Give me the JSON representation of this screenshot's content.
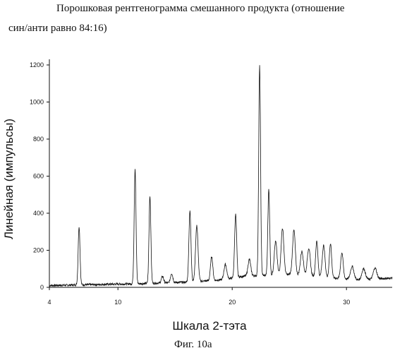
{
  "document": {
    "title_line_1": "Порошковая рентгенограмма смешанного продукта (отношение",
    "title_line_2": "син/анти равно 84:16)",
    "caption": "Фиг. 10а"
  },
  "chart_data": {
    "type": "line",
    "title": "Порошковая рентгенограмма смешанного продукта (отношение син/анти равно 84:16)",
    "xlabel": "Шкала 2-тэта",
    "ylabel": "Линейная (импульсы)",
    "xlim": [
      4,
      34
    ],
    "ylim": [
      0,
      1200
    ],
    "x_ticks": [
      "4",
      "10",
      "20",
      "30"
    ],
    "x_tick_values": [
      4,
      10,
      20,
      30
    ],
    "y_ticks": [
      "0",
      "200",
      "400",
      "600",
      "800",
      "1000",
      "1200"
    ],
    "y_tick_values": [
      0,
      200,
      400,
      600,
      800,
      1000,
      1200
    ],
    "grid": false,
    "baseline": [
      [
        4,
        10
      ],
      [
        8,
        15
      ],
      [
        12,
        20
      ],
      [
        16,
        28
      ],
      [
        19,
        40
      ],
      [
        21,
        60
      ],
      [
        23,
        65
      ],
      [
        25,
        70
      ],
      [
        28,
        55
      ],
      [
        31,
        40
      ],
      [
        34,
        50
      ]
    ],
    "peaks": [
      {
        "x": 6.6,
        "y": 315,
        "width": 0.08
      },
      {
        "x": 11.5,
        "y": 620,
        "width": 0.08
      },
      {
        "x": 12.8,
        "y": 470,
        "width": 0.08
      },
      {
        "x": 13.9,
        "y": 35,
        "width": 0.1
      },
      {
        "x": 14.7,
        "y": 50,
        "width": 0.1
      },
      {
        "x": 16.3,
        "y": 380,
        "width": 0.09
      },
      {
        "x": 16.9,
        "y": 300,
        "width": 0.11
      },
      {
        "x": 18.2,
        "y": 130,
        "width": 0.1
      },
      {
        "x": 19.4,
        "y": 80,
        "width": 0.12
      },
      {
        "x": 20.3,
        "y": 340,
        "width": 0.09
      },
      {
        "x": 21.5,
        "y": 90,
        "width": 0.12
      },
      {
        "x": 22.4,
        "y": 1130,
        "width": 0.08
      },
      {
        "x": 23.2,
        "y": 465,
        "width": 0.08
      },
      {
        "x": 23.8,
        "y": 180,
        "width": 0.12
      },
      {
        "x": 24.4,
        "y": 250,
        "width": 0.12
      },
      {
        "x": 25.4,
        "y": 240,
        "width": 0.12
      },
      {
        "x": 26.1,
        "y": 130,
        "width": 0.13
      },
      {
        "x": 26.7,
        "y": 150,
        "width": 0.13
      },
      {
        "x": 27.4,
        "y": 190,
        "width": 0.1
      },
      {
        "x": 28.0,
        "y": 170,
        "width": 0.12
      },
      {
        "x": 28.6,
        "y": 185,
        "width": 0.1
      },
      {
        "x": 29.6,
        "y": 140,
        "width": 0.11
      },
      {
        "x": 30.5,
        "y": 70,
        "width": 0.15
      },
      {
        "x": 31.5,
        "y": 60,
        "width": 0.15
      },
      {
        "x": 32.5,
        "y": 60,
        "width": 0.15
      }
    ]
  }
}
